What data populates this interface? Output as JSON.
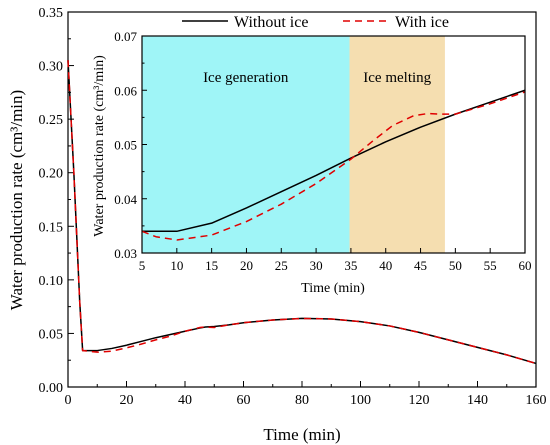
{
  "chart_data": [
    {
      "type": "line",
      "role": "main",
      "xlabel": "Time (min)",
      "ylabel": "Water production rate (cm³/min)",
      "xlim": [
        0,
        160
      ],
      "ylim": [
        0,
        0.35
      ],
      "xticks": [
        0,
        20,
        40,
        60,
        80,
        100,
        120,
        140,
        160
      ],
      "yticks": [
        0.0,
        0.05,
        0.1,
        0.15,
        0.2,
        0.25,
        0.3,
        0.35
      ],
      "grid": false,
      "legend": "top-right",
      "series": [
        {
          "name": "Without ice",
          "color": "#000000",
          "style": "solid",
          "x": [
            0,
            2,
            4,
            5,
            10,
            15,
            20,
            25,
            30,
            35,
            40,
            45,
            47,
            50,
            55,
            60,
            70,
            80,
            90,
            100,
            110,
            120,
            130,
            140,
            150,
            160
          ],
          "y": [
            0.305,
            0.2,
            0.08,
            0.034,
            0.034,
            0.036,
            0.039,
            0.0425,
            0.046,
            0.049,
            0.052,
            0.055,
            0.056,
            0.0565,
            0.058,
            0.06,
            0.0625,
            0.064,
            0.0635,
            0.061,
            0.057,
            0.051,
            0.044,
            0.037,
            0.03,
            0.022
          ]
        },
        {
          "name": "With ice",
          "color": "#e00000",
          "style": "dashed",
          "x": [
            0,
            2,
            4,
            5,
            10,
            15,
            20,
            25,
            30,
            35,
            40,
            45,
            47,
            50,
            55,
            60,
            70,
            80,
            90,
            100,
            110,
            120,
            130,
            140,
            150,
            160
          ],
          "y": [
            0.305,
            0.2,
            0.08,
            0.034,
            0.0325,
            0.0335,
            0.0365,
            0.04,
            0.044,
            0.0475,
            0.052,
            0.0555,
            0.056,
            0.0555,
            0.058,
            0.06,
            0.0625,
            0.064,
            0.0635,
            0.061,
            0.057,
            0.051,
            0.044,
            0.037,
            0.03,
            0.022
          ]
        }
      ]
    },
    {
      "type": "line",
      "role": "inset",
      "xlabel": "Time (min)",
      "ylabel": "Water production rate (cm³/min)",
      "xlim": [
        5,
        60
      ],
      "ylim": [
        0.03,
        0.07
      ],
      "xticks": [
        5,
        10,
        15,
        20,
        25,
        30,
        35,
        40,
        45,
        50,
        55,
        60
      ],
      "yticks": [
        0.03,
        0.04,
        0.05,
        0.06,
        0.07
      ],
      "grid": false,
      "regions": [
        {
          "label": "Ice generation",
          "x0": 5,
          "x1": 34.8,
          "color": "#9ff5f7"
        },
        {
          "label": "Ice melting",
          "x0": 34.8,
          "x1": 48.5,
          "color": "#f5deb0"
        }
      ],
      "series": [
        {
          "name": "Without ice",
          "color": "#000000",
          "style": "solid",
          "x": [
            5,
            7,
            10,
            15,
            20,
            25,
            30,
            35,
            40,
            45,
            50,
            55,
            60
          ],
          "y": [
            0.034,
            0.034,
            0.034,
            0.0355,
            0.0383,
            0.0413,
            0.0443,
            0.0475,
            0.0505,
            0.0532,
            0.0556,
            0.0578,
            0.06
          ]
        },
        {
          "name": "With ice",
          "color": "#e00000",
          "style": "dashed",
          "x": [
            5,
            7,
            10,
            15,
            20,
            25,
            30,
            35,
            38,
            41,
            44,
            46,
            48,
            50,
            55,
            60
          ],
          "y": [
            0.034,
            0.033,
            0.0324,
            0.0333,
            0.0358,
            0.039,
            0.0428,
            0.0473,
            0.0505,
            0.0535,
            0.0553,
            0.0557,
            0.0556,
            0.0556,
            0.0575,
            0.0597
          ]
        }
      ]
    }
  ]
}
